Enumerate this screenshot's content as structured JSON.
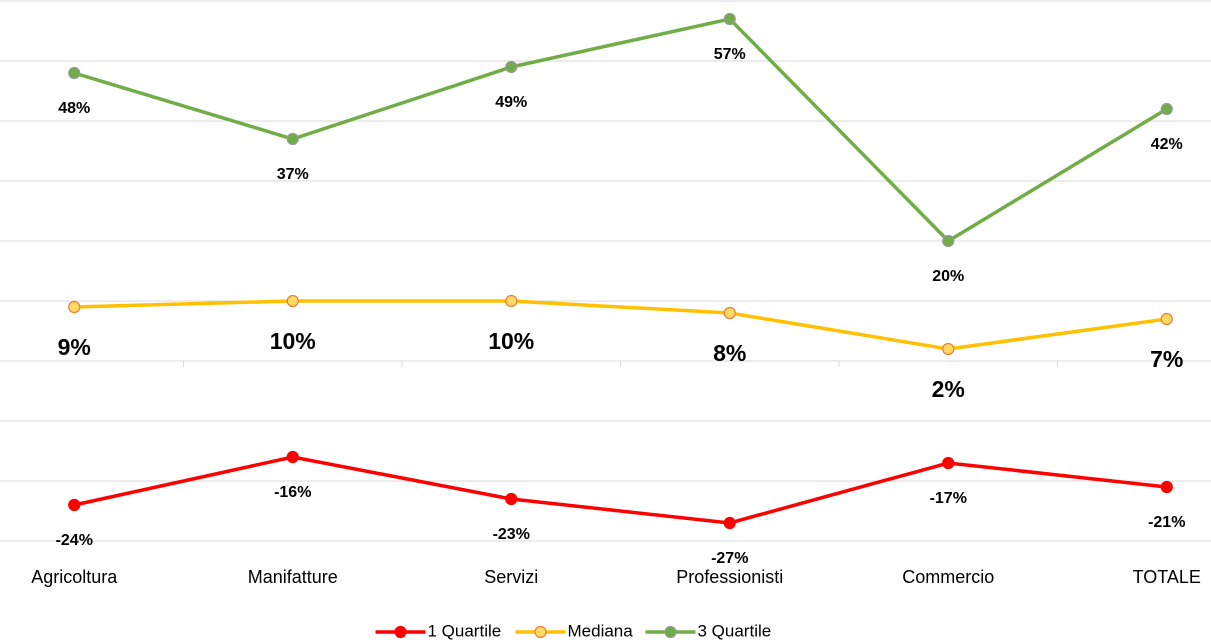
{
  "chart_data": {
    "type": "line",
    "categories": [
      "Agricoltura",
      "Manifatture",
      "Servizi",
      "Professionisti",
      "Commercio",
      "TOTALE"
    ],
    "series": [
      {
        "name": "1 Quartile",
        "color": "#ff0000",
        "marker_fill": "#ff0000",
        "marker_stroke": "#ff0000",
        "values": [
          -24,
          -16,
          -23,
          -27,
          -17,
          -21
        ],
        "value_labels": [
          "-24%",
          "-16%",
          "-23%",
          "-27%",
          "-17%",
          "-21%"
        ]
      },
      {
        "name": "Mediana",
        "color": "#ffc000",
        "marker_fill": "#ffd966",
        "marker_stroke": "#ed7d31",
        "values": [
          9,
          10,
          10,
          8,
          2,
          7
        ],
        "value_labels": [
          "9%",
          "10%",
          "10%",
          "8%",
          "2%",
          "7%"
        ]
      },
      {
        "name": "3 Quartile",
        "color": "#70ad47",
        "marker_fill": "#70ad47",
        "marker_stroke": "#999999",
        "values": [
          48,
          37,
          49,
          57,
          20,
          42
        ],
        "value_labels": [
          "48%",
          "37%",
          "49%",
          "57%",
          "20%",
          "42%"
        ]
      }
    ],
    "ylim": [
      -30,
      60
    ],
    "yticks": [
      -30,
      -20,
      -10,
      0,
      10,
      20,
      30,
      40,
      50,
      60
    ],
    "grid": true,
    "legend": "bottom"
  }
}
